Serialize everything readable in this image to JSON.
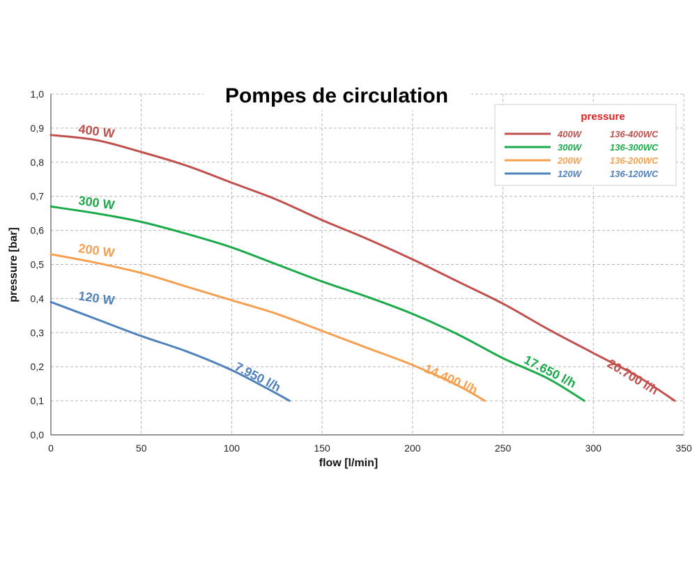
{
  "chart_data": {
    "type": "line",
    "title": "Pompes de circulation",
    "xlabel": "flow [l/min]",
    "ylabel": "pressure [bar]",
    "xlim": [
      0,
      350
    ],
    "ylim": [
      0,
      1
    ],
    "x_ticks": [
      "0",
      "50",
      "100",
      "150",
      "200",
      "250",
      "300",
      "350"
    ],
    "y_ticks": [
      "0,0",
      "0,1",
      "0,2",
      "0,3",
      "0,4",
      "0,5",
      "0,6",
      "0,7",
      "0,8",
      "0,9",
      "1,0"
    ],
    "grid": true,
    "legend": {
      "title": "pressure",
      "position": "top-right"
    },
    "series": [
      {
        "name": "400W",
        "model": "136-400WC",
        "curve_label": "400 W",
        "end_label": "20.700 l/h",
        "color": "#c0504d",
        "points": [
          [
            0,
            0.88
          ],
          [
            25,
            0.865
          ],
          [
            50,
            0.83
          ],
          [
            75,
            0.79
          ],
          [
            100,
            0.74
          ],
          [
            125,
            0.69
          ],
          [
            150,
            0.63
          ],
          [
            175,
            0.575
          ],
          [
            200,
            0.515
          ],
          [
            225,
            0.45
          ],
          [
            250,
            0.385
          ],
          [
            275,
            0.31
          ],
          [
            300,
            0.24
          ],
          [
            325,
            0.17
          ],
          [
            345,
            0.1
          ]
        ]
      },
      {
        "name": "300W",
        "model": "136-300WC",
        "curve_label": "300 W",
        "end_label": "17.650 l/h",
        "color": "#1aaa4a",
        "points": [
          [
            0,
            0.67
          ],
          [
            25,
            0.65
          ],
          [
            50,
            0.625
          ],
          [
            75,
            0.59
          ],
          [
            100,
            0.55
          ],
          [
            125,
            0.5
          ],
          [
            150,
            0.45
          ],
          [
            175,
            0.405
          ],
          [
            200,
            0.355
          ],
          [
            225,
            0.295
          ],
          [
            250,
            0.225
          ],
          [
            275,
            0.165
          ],
          [
            295,
            0.1
          ]
        ]
      },
      {
        "name": "200W",
        "model": "136-200WC",
        "curve_label": "200 W",
        "end_label": "14.400 l/h",
        "color": "#f5a050",
        "points": [
          [
            0,
            0.53
          ],
          [
            25,
            0.505
          ],
          [
            50,
            0.475
          ],
          [
            75,
            0.435
          ],
          [
            100,
            0.395
          ],
          [
            125,
            0.355
          ],
          [
            150,
            0.305
          ],
          [
            175,
            0.255
          ],
          [
            200,
            0.205
          ],
          [
            225,
            0.145
          ],
          [
            240,
            0.1
          ]
        ]
      },
      {
        "name": "120W",
        "model": "136-120WC",
        "curve_label": "120 W",
        "end_label": "7.950 l/h",
        "color": "#4f81bd",
        "points": [
          [
            0,
            0.39
          ],
          [
            25,
            0.34
          ],
          [
            50,
            0.29
          ],
          [
            75,
            0.245
          ],
          [
            100,
            0.19
          ],
          [
            120,
            0.135
          ],
          [
            132,
            0.1
          ]
        ]
      }
    ]
  }
}
